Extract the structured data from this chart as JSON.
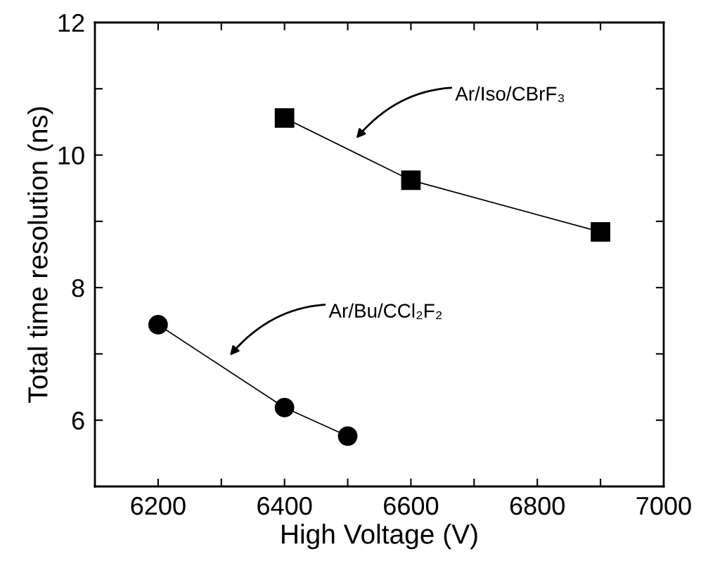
{
  "chart_data": {
    "type": "line",
    "xlabel": "High Voltage (V)",
    "ylabel": "Total time resolution (ns)",
    "series": [
      {
        "name": "Ar/Iso/CBrF₃",
        "color": "#000000",
        "marker": "square",
        "x": [
          6400,
          6600,
          6900
        ],
        "values": [
          10.56,
          9.62,
          8.84
        ]
      },
      {
        "name": "Ar/Bu/CCl₂F₂",
        "color": "#000000",
        "marker": "circle",
        "x": [
          6200,
          6400,
          6500
        ],
        "values": [
          7.44,
          6.19,
          5.76
        ]
      }
    ],
    "xlim": [
      6100,
      7000
    ],
    "ylim": [
      5,
      12
    ],
    "xticks": [
      {
        "value": 6100,
        "label": null
      },
      6200,
      {
        "value": 6300,
        "label": null
      },
      6400,
      {
        "value": 6500,
        "label": null
      },
      6600,
      {
        "value": 6700,
        "label": null
      },
      6800,
      {
        "value": 6900,
        "label": null
      },
      7000
    ],
    "yticks": [
      {
        "value": 5,
        "label": null
      },
      6,
      {
        "value": 7,
        "label": null
      },
      8,
      {
        "value": 9,
        "label": null
      },
      10,
      {
        "value": 11,
        "label": null
      },
      12
    ],
    "grid": false,
    "legend": false,
    "line_style": "solid"
  }
}
